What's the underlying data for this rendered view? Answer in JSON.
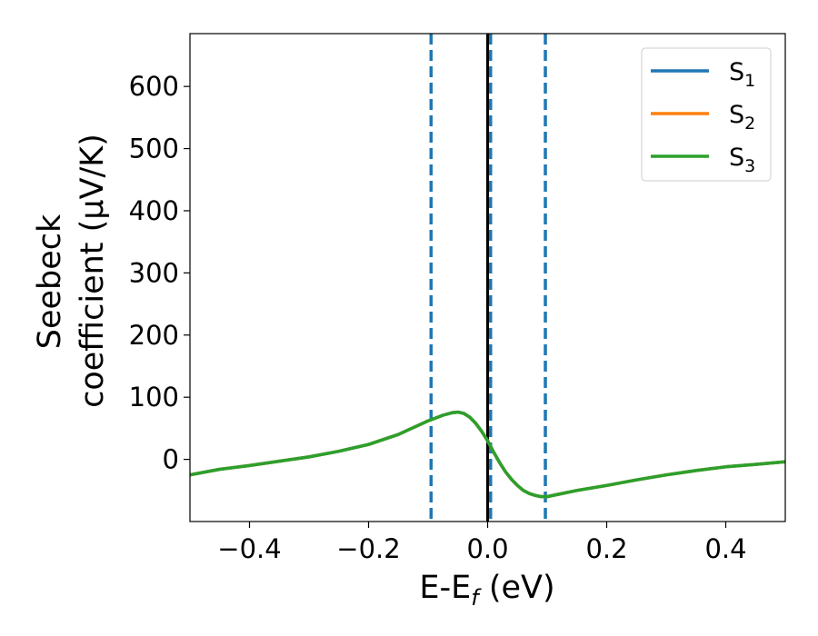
{
  "chart_data": {
    "type": "line",
    "xlabel": {
      "main": "E-E",
      "sub": "f",
      "unit": " (eV)"
    },
    "ylabel": {
      "line1": "Seebeck",
      "line2": "coefficient  (μV/K)"
    },
    "xlim": [
      -0.5,
      0.5
    ],
    "ylim": [
      -100,
      685
    ],
    "xticks": [
      -0.4,
      -0.2,
      0.0,
      0.2,
      0.4
    ],
    "xtick_labels": [
      "−0.4",
      "−0.2",
      "0.0",
      "0.2",
      "0.4"
    ],
    "yticks": [
      0,
      100,
      200,
      300,
      400,
      500,
      600
    ],
    "ytick_labels": [
      "0",
      "100",
      "200",
      "300",
      "400",
      "500",
      "600"
    ],
    "grid": false,
    "legend_position": "top-right",
    "vlines": [
      {
        "x": -0.095,
        "style": "dashed",
        "color": "#1f77b4"
      },
      {
        "x": 0.0,
        "style": "solid",
        "color": "#000000"
      },
      {
        "x": 0.005,
        "style": "dashed",
        "color": "#1f77b4"
      },
      {
        "x": 0.097,
        "style": "dashed",
        "color": "#1f77b4"
      }
    ],
    "series": [
      {
        "name": {
          "main": "S",
          "sub": "1"
        },
        "color": "#1f77b4",
        "x": [
          -0.5,
          -0.45,
          -0.4,
          -0.35,
          -0.3,
          -0.25,
          -0.2,
          -0.15,
          -0.1,
          -0.075,
          -0.06,
          -0.05,
          -0.04,
          -0.03,
          -0.02,
          -0.01,
          0.0,
          0.01,
          0.02,
          0.03,
          0.04,
          0.05,
          0.06,
          0.07,
          0.08,
          0.09,
          0.1,
          0.12,
          0.15,
          0.2,
          0.25,
          0.3,
          0.35,
          0.4,
          0.45,
          0.5
        ],
        "y": [
          -25,
          -16,
          -10,
          -3,
          4,
          13,
          24,
          40,
          62,
          71,
          75,
          76,
          74,
          68,
          58,
          45,
          30,
          12,
          -5,
          -20,
          -32,
          -42,
          -50,
          -55,
          -58,
          -60,
          -60,
          -56,
          -50,
          -42,
          -33,
          -25,
          -18,
          -12,
          -8,
          -4
        ]
      },
      {
        "name": {
          "main": "S",
          "sub": "2"
        },
        "color": "#ff7f0e",
        "x": [
          -0.5,
          -0.45,
          -0.4,
          -0.35,
          -0.3,
          -0.25,
          -0.2,
          -0.15,
          -0.1,
          -0.075,
          -0.06,
          -0.05,
          -0.04,
          -0.03,
          -0.02,
          -0.01,
          0.0,
          0.01,
          0.02,
          0.03,
          0.04,
          0.05,
          0.06,
          0.07,
          0.08,
          0.09,
          0.1,
          0.12,
          0.15,
          0.2,
          0.25,
          0.3,
          0.35,
          0.4,
          0.45,
          0.5
        ],
        "y": [
          -25,
          -16,
          -10,
          -3,
          4,
          13,
          24,
          40,
          62,
          71,
          75,
          76,
          74,
          68,
          58,
          45,
          30,
          12,
          -5,
          -20,
          -32,
          -42,
          -50,
          -55,
          -58,
          -60,
          -60,
          -56,
          -50,
          -42,
          -33,
          -25,
          -18,
          -12,
          -8,
          -4
        ]
      },
      {
        "name": {
          "main": "S",
          "sub": "3"
        },
        "color": "#2ca02c",
        "x": [
          -0.5,
          -0.45,
          -0.4,
          -0.35,
          -0.3,
          -0.25,
          -0.2,
          -0.15,
          -0.1,
          -0.075,
          -0.06,
          -0.05,
          -0.04,
          -0.03,
          -0.02,
          -0.01,
          0.0,
          0.01,
          0.02,
          0.03,
          0.04,
          0.05,
          0.06,
          0.07,
          0.08,
          0.09,
          0.1,
          0.12,
          0.15,
          0.2,
          0.25,
          0.3,
          0.35,
          0.4,
          0.45,
          0.5
        ],
        "y": [
          -25,
          -16,
          -10,
          -3,
          4,
          13,
          24,
          40,
          62,
          71,
          75,
          76,
          74,
          68,
          58,
          45,
          30,
          12,
          -5,
          -20,
          -32,
          -42,
          -50,
          -55,
          -58,
          -60,
          -60,
          -56,
          -50,
          -42,
          -33,
          -25,
          -18,
          -12,
          -8,
          -4
        ]
      }
    ]
  }
}
